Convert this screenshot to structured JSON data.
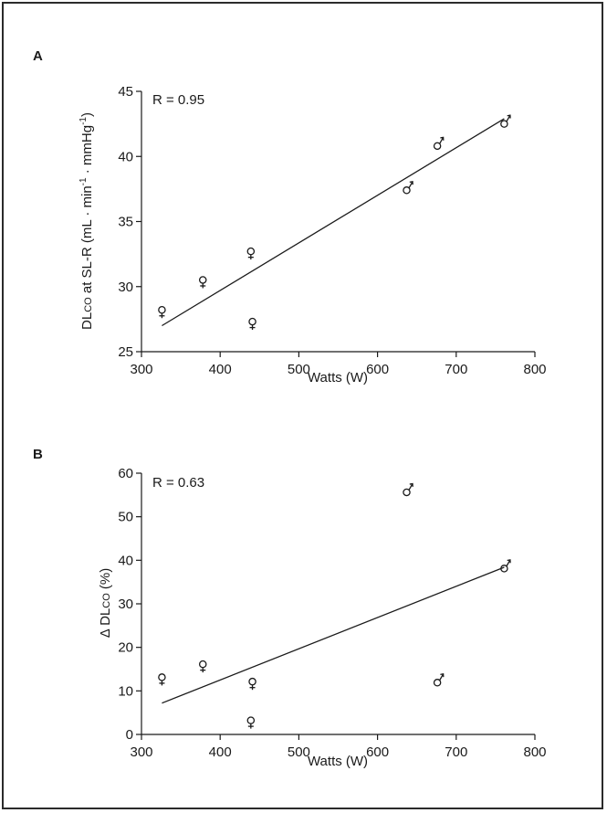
{
  "colors": {
    "frame": "#2b2b2b",
    "ink": "#1a1a1a",
    "background": "#ffffff"
  },
  "chart_data": [
    {
      "panel": "A",
      "type": "scatter",
      "annotation": "R = 0.95",
      "xlabel": "Watts (W)",
      "ylabel_parts": {
        "dl": "DL",
        "co": "CO",
        "main": " at  SL-R (mL · min",
        "sup1": "-1",
        "mid": " · mmHg",
        "sup2": "-1",
        "end": ")"
      },
      "xlim": [
        300,
        800
      ],
      "ylim": [
        25,
        45
      ],
      "xticks": [
        "300",
        "400",
        "500",
        "600",
        "700",
        "800"
      ],
      "yticks": [
        "25",
        "30",
        "35",
        "40",
        "45"
      ],
      "grid": false,
      "legend": "none",
      "points": [
        {
          "x": 326,
          "y": 28.0,
          "sex": "female"
        },
        {
          "x": 378,
          "y": 30.3,
          "sex": "female"
        },
        {
          "x": 439,
          "y": 32.5,
          "sex": "female"
        },
        {
          "x": 441,
          "y": 27.1,
          "sex": "female"
        },
        {
          "x": 637,
          "y": 37.4,
          "sex": "male"
        },
        {
          "x": 676,
          "y": 40.8,
          "sex": "male"
        },
        {
          "x": 761,
          "y": 42.5,
          "sex": "male"
        }
      ],
      "fit_line": {
        "x": [
          326,
          761
        ],
        "y": [
          27.0,
          42.9
        ]
      }
    },
    {
      "panel": "B",
      "type": "scatter",
      "annotation": "R = 0.63",
      "xlabel": "Watts (W)",
      "ylabel_parts": {
        "prefix": "Δ DL",
        "co": "CO",
        "suffix": " (%)"
      },
      "xlim": [
        300,
        800
      ],
      "ylim": [
        0,
        60
      ],
      "xticks": [
        "300",
        "400",
        "500",
        "600",
        "700",
        "800"
      ],
      "yticks": [
        "0",
        "10",
        "20",
        "30",
        "40",
        "50",
        "60"
      ],
      "grid": false,
      "legend": "none",
      "points": [
        {
          "x": 326,
          "y": 12.5,
          "sex": "female"
        },
        {
          "x": 378,
          "y": 15.5,
          "sex": "female"
        },
        {
          "x": 439,
          "y": 2.6,
          "sex": "female"
        },
        {
          "x": 441,
          "y": 11.5,
          "sex": "female"
        },
        {
          "x": 637,
          "y": 55.6,
          "sex": "male"
        },
        {
          "x": 676,
          "y": 11.9,
          "sex": "male"
        },
        {
          "x": 761,
          "y": 38.1,
          "sex": "male"
        }
      ],
      "fit_line": {
        "x": [
          326,
          761
        ],
        "y": [
          7.2,
          38.4
        ]
      }
    }
  ]
}
